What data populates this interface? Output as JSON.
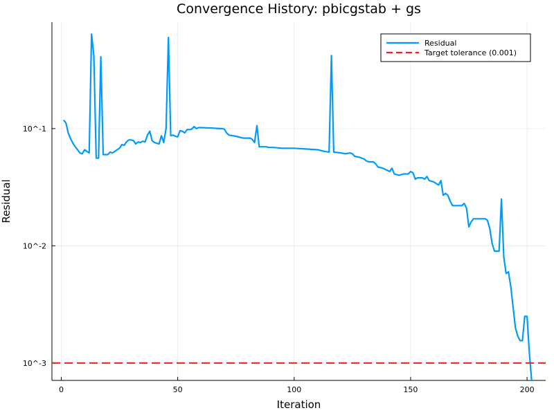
{
  "chart_data": {
    "type": "line",
    "title": "Convergence History: pbicgstab + gs",
    "xlabel": "Iteration",
    "ylabel": "Residual",
    "xlim": [
      -4,
      208
    ],
    "ylim": [
      0.00071,
      0.81
    ],
    "yscale": "log",
    "x_ticks": [
      0,
      50,
      100,
      150,
      200
    ],
    "y_ticks": [
      0.1,
      0.01,
      0.001
    ],
    "y_tick_labels": [
      "10^-1",
      "10^-2",
      "10^-3"
    ],
    "grid": true,
    "legend_position": "top-right",
    "series": [
      {
        "name": "Residual",
        "color": "#009AFA",
        "style": "solid",
        "points": [
          [
            1,
            0.118
          ],
          [
            2,
            0.112
          ],
          [
            3,
            0.092
          ],
          [
            4,
            0.082
          ],
          [
            5,
            0.075
          ],
          [
            6,
            0.07
          ],
          [
            7,
            0.066
          ],
          [
            8,
            0.062
          ],
          [
            9,
            0.061
          ],
          [
            10,
            0.066
          ],
          [
            11,
            0.064
          ],
          [
            12,
            0.062
          ],
          [
            13,
            0.64
          ],
          [
            14,
            0.42
          ],
          [
            15,
            0.056
          ],
          [
            16,
            0.056
          ],
          [
            17,
            0.41
          ],
          [
            18,
            0.06
          ],
          [
            19,
            0.06
          ],
          [
            20,
            0.06
          ],
          [
            21,
            0.063
          ],
          [
            22,
            0.062
          ],
          [
            23,
            0.064
          ],
          [
            24,
            0.066
          ],
          [
            25,
            0.068
          ],
          [
            26,
            0.073
          ],
          [
            27,
            0.072
          ],
          [
            28,
            0.077
          ],
          [
            29,
            0.08
          ],
          [
            30,
            0.08
          ],
          [
            31,
            0.079
          ],
          [
            32,
            0.074
          ],
          [
            33,
            0.077
          ],
          [
            34,
            0.076
          ],
          [
            35,
            0.078
          ],
          [
            36,
            0.077
          ],
          [
            37,
            0.088
          ],
          [
            38,
            0.095
          ],
          [
            39,
            0.079
          ],
          [
            40,
            0.076
          ],
          [
            41,
            0.075
          ],
          [
            42,
            0.074
          ],
          [
            43,
            0.087
          ],
          [
            44,
            0.076
          ],
          [
            45,
            0.1
          ],
          [
            46,
            0.6
          ],
          [
            47,
            0.087
          ],
          [
            48,
            0.088
          ],
          [
            49,
            0.086
          ],
          [
            50,
            0.085
          ],
          [
            51,
            0.096
          ],
          [
            52,
            0.095
          ],
          [
            53,
            0.092
          ],
          [
            54,
            0.098
          ],
          [
            55,
            0.098
          ],
          [
            56,
            0.099
          ],
          [
            57,
            0.104
          ],
          [
            58,
            0.1
          ],
          [
            59,
            0.102
          ],
          [
            60,
            0.102
          ],
          [
            65,
            0.101
          ],
          [
            68,
            0.1
          ],
          [
            69,
            0.1
          ],
          [
            70,
            0.099
          ],
          [
            71,
            0.092
          ],
          [
            72,
            0.088
          ],
          [
            75,
            0.086
          ],
          [
            78,
            0.083
          ],
          [
            81,
            0.083
          ],
          [
            82,
            0.081
          ],
          [
            83,
            0.076
          ],
          [
            84,
            0.106
          ],
          [
            85,
            0.07
          ],
          [
            88,
            0.07
          ],
          [
            89,
            0.069
          ],
          [
            91,
            0.069
          ],
          [
            95,
            0.068
          ],
          [
            100,
            0.068
          ],
          [
            105,
            0.067
          ],
          [
            110,
            0.066
          ],
          [
            113,
            0.064
          ],
          [
            115,
            0.063
          ],
          [
            116,
            0.42
          ],
          [
            117,
            0.063
          ],
          [
            120,
            0.062
          ],
          [
            122,
            0.061
          ],
          [
            124,
            0.062
          ],
          [
            125,
            0.061
          ],
          [
            126,
            0.058
          ],
          [
            128,
            0.057
          ],
          [
            130,
            0.055
          ],
          [
            131,
            0.053
          ],
          [
            132,
            0.052
          ],
          [
            134,
            0.052
          ],
          [
            135,
            0.05
          ],
          [
            136,
            0.047
          ],
          [
            138,
            0.046
          ],
          [
            140,
            0.044
          ],
          [
            141,
            0.043
          ],
          [
            142,
            0.046
          ],
          [
            143,
            0.041
          ],
          [
            145,
            0.04
          ],
          [
            147,
            0.041
          ],
          [
            149,
            0.041
          ],
          [
            150,
            0.043
          ],
          [
            151,
            0.042
          ],
          [
            152,
            0.037
          ],
          [
            153,
            0.038
          ],
          [
            155,
            0.038
          ],
          [
            156,
            0.037
          ],
          [
            157,
            0.039
          ],
          [
            158,
            0.036
          ],
          [
            160,
            0.035
          ],
          [
            161,
            0.034
          ],
          [
            162,
            0.033
          ],
          [
            163,
            0.036
          ],
          [
            164,
            0.027
          ],
          [
            165,
            0.028
          ],
          [
            166,
            0.027
          ],
          [
            167,
            0.024
          ],
          [
            168,
            0.022
          ],
          [
            170,
            0.022
          ],
          [
            172,
            0.022
          ],
          [
            173,
            0.023
          ],
          [
            174,
            0.021
          ],
          [
            175,
            0.0145
          ],
          [
            176,
            0.016
          ],
          [
            177,
            0.017
          ],
          [
            178,
            0.017
          ],
          [
            180,
            0.017
          ],
          [
            182,
            0.017
          ],
          [
            183,
            0.0165
          ],
          [
            184,
            0.014
          ],
          [
            185,
            0.0105
          ],
          [
            186,
            0.009
          ],
          [
            187,
            0.009
          ],
          [
            188,
            0.009
          ],
          [
            189,
            0.025
          ],
          [
            190,
            0.008
          ],
          [
            191,
            0.0058
          ],
          [
            192,
            0.006
          ],
          [
            193,
            0.0045
          ],
          [
            194,
            0.003
          ],
          [
            195,
            0.002
          ],
          [
            196,
            0.0017
          ],
          [
            197,
            0.00155
          ],
          [
            198,
            0.00155
          ],
          [
            199,
            0.0025
          ],
          [
            200,
            0.0025
          ],
          [
            201,
            0.0012
          ],
          [
            202,
            0.0007
          ]
        ]
      },
      {
        "name": "Target tolerance (0.001)",
        "color": "#E6261F",
        "style": "dashed",
        "constant_y": 0.001
      }
    ]
  }
}
